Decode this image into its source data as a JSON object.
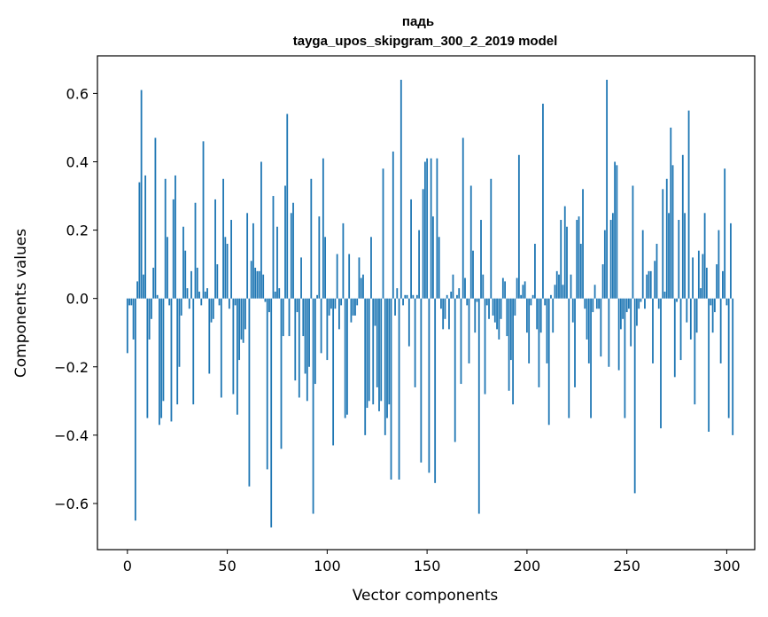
{
  "chart_data": {
    "type": "bar",
    "title": "падь",
    "subtitle": "tayga_upos_skipgram_300_2_2019 model",
    "xlabel": "Vector components",
    "ylabel": "Components values",
    "xlim": [
      -15,
      314
    ],
    "ylim": [
      -0.735,
      0.71
    ],
    "xticks": [
      0,
      50,
      100,
      150,
      200,
      250,
      300
    ],
    "xtick_labels": [
      "0",
      "50",
      "100",
      "150",
      "200",
      "250",
      "300"
    ],
    "yticks": [
      -0.6,
      -0.4,
      -0.2,
      0.0,
      0.2,
      0.4,
      0.6
    ],
    "ytick_labels": [
      "−0.6",
      "−0.4",
      "−0.2",
      "0.0",
      "0.2",
      "0.4",
      "0.6"
    ],
    "bar_color": "#1f77b4",
    "values": [
      -0.16,
      -0.02,
      -0.02,
      -0.12,
      -0.65,
      0.05,
      0.34,
      0.61,
      0.07,
      0.36,
      -0.35,
      -0.12,
      -0.06,
      0.09,
      0.47,
      0.01,
      -0.37,
      -0.35,
      -0.3,
      0.35,
      0.18,
      -0.02,
      -0.36,
      0.29,
      0.36,
      -0.31,
      -0.2,
      -0.05,
      0.21,
      0.14,
      0.03,
      -0.03,
      0.08,
      -0.31,
      0.28,
      0.09,
      0.02,
      -0.02,
      0.46,
      0.02,
      0.03,
      -0.22,
      -0.07,
      -0.06,
      0.29,
      0.1,
      -0.02,
      -0.29,
      0.35,
      0.18,
      0.16,
      -0.03,
      0.23,
      -0.28,
      -0.02,
      -0.34,
      -0.18,
      -0.12,
      -0.13,
      -0.09,
      0.25,
      -0.55,
      0.11,
      0.22,
      0.09,
      0.08,
      0.08,
      0.4,
      0.07,
      -0.01,
      -0.5,
      -0.04,
      -0.67,
      0.3,
      0.02,
      0.21,
      0.03,
      -0.44,
      -0.11,
      0.33,
      0.54,
      -0.11,
      0.25,
      0.28,
      -0.24,
      -0.04,
      -0.29,
      0.12,
      -0.11,
      -0.22,
      -0.3,
      -0.2,
      0.35,
      -0.63,
      -0.25,
      0.01,
      0.24,
      -0.16,
      0.41,
      0.18,
      -0.18,
      -0.05,
      -0.03,
      -0.43,
      -0.03,
      0.13,
      -0.09,
      -0.02,
      0.22,
      -0.35,
      -0.34,
      0.13,
      -0.07,
      -0.05,
      -0.05,
      -0.02,
      0.12,
      0.06,
      0.07,
      -0.4,
      -0.32,
      -0.3,
      0.18,
      -0.31,
      -0.08,
      -0.26,
      -0.33,
      -0.3,
      0.38,
      -0.4,
      -0.35,
      -0.31,
      -0.53,
      0.43,
      -0.05,
      0.03,
      -0.53,
      0.64,
      -0.02,
      0.01,
      0.01,
      -0.14,
      0.29,
      0.01,
      -0.26,
      0.01,
      0.2,
      -0.48,
      0.32,
      0.4,
      0.41,
      -0.51,
      0.41,
      0.24,
      -0.54,
      0.41,
      0.18,
      -0.03,
      -0.09,
      -0.06,
      0.01,
      -0.09,
      0.02,
      0.07,
      -0.42,
      0.01,
      0.03,
      -0.25,
      0.47,
      0.06,
      -0.02,
      -0.19,
      0.33,
      0.14,
      -0.1,
      -0.01,
      -0.63,
      0.23,
      0.07,
      -0.28,
      -0.02,
      -0.06,
      0.35,
      -0.05,
      -0.07,
      -0.09,
      -0.12,
      -0.06,
      0.06,
      0.05,
      -0.11,
      -0.27,
      -0.18,
      -0.31,
      -0.05,
      0.06,
      0.42,
      0.01,
      0.04,
      0.05,
      -0.1,
      -0.19,
      -0.02,
      0.01,
      0.16,
      -0.09,
      -0.26,
      -0.1,
      0.57,
      -0.02,
      -0.19,
      -0.37,
      0.01,
      -0.1,
      0.04,
      0.08,
      0.07,
      0.23,
      0.04,
      0.27,
      0.21,
      -0.35,
      0.07,
      -0.07,
      -0.26,
      0.23,
      0.24,
      0.16,
      0.32,
      -0.03,
      -0.12,
      -0.19,
      -0.35,
      -0.04,
      0.04,
      -0.03,
      -0.03,
      -0.17,
      0.1,
      0.2,
      0.64,
      -0.2,
      0.23,
      0.25,
      0.4,
      0.39,
      -0.21,
      -0.09,
      -0.06,
      -0.35,
      -0.04,
      -0.03,
      -0.14,
      0.33,
      -0.57,
      -0.08,
      -0.03,
      -0.01,
      0.2,
      -0.03,
      0.07,
      0.08,
      0.08,
      -0.19,
      0.11,
      0.16,
      -0.03,
      -0.38,
      0.32,
      0.02,
      0.35,
      0.25,
      0.5,
      0.39,
      -0.23,
      -0.01,
      0.23,
      -0.18,
      0.42,
      0.25,
      -0.07,
      0.55,
      -0.12,
      0.12,
      -0.31,
      -0.1,
      0.14,
      0.03,
      0.13,
      0.25,
      0.09,
      -0.39,
      -0.02,
      -0.1,
      -0.04,
      0.1,
      0.2,
      -0.19,
      0.08,
      0.38,
      -0.02,
      -0.35,
      0.22,
      -0.4
    ]
  }
}
